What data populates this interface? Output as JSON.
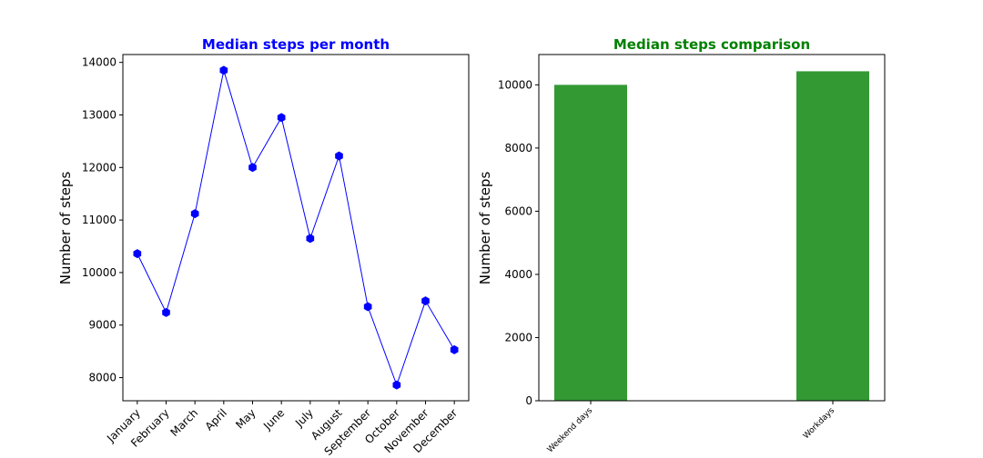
{
  "colors": {
    "line_series": "#0000ff",
    "bar_series": "#339933",
    "title_left": "#0000ff",
    "title_right": "#008000"
  },
  "chart_data": [
    {
      "type": "line",
      "title": "Median steps per month",
      "xlabel": "",
      "ylabel": "Number of steps",
      "categories": [
        "January",
        "February",
        "March",
        "April",
        "May",
        "June",
        "July",
        "August",
        "September",
        "October",
        "November",
        "December"
      ],
      "values": [
        10360,
        9240,
        11120,
        13850,
        12000,
        12950,
        10650,
        12220,
        9350,
        7860,
        9460,
        8530
      ],
      "ylim": [
        7560,
        14150
      ],
      "yticks": [
        8000,
        9000,
        10000,
        11000,
        12000,
        13000,
        14000
      ],
      "marker": "hexagon",
      "grid": false,
      "legend": "none"
    },
    {
      "type": "bar",
      "title": "Median steps comparison",
      "xlabel": "",
      "ylabel": "Number of steps",
      "categories": [
        "Weekend days",
        "Workdays"
      ],
      "values": [
        10000,
        10430
      ],
      "ylim": [
        0,
        10960
      ],
      "yticks": [
        0,
        2000,
        4000,
        6000,
        8000,
        10000
      ],
      "grid": false,
      "legend": "none"
    }
  ]
}
